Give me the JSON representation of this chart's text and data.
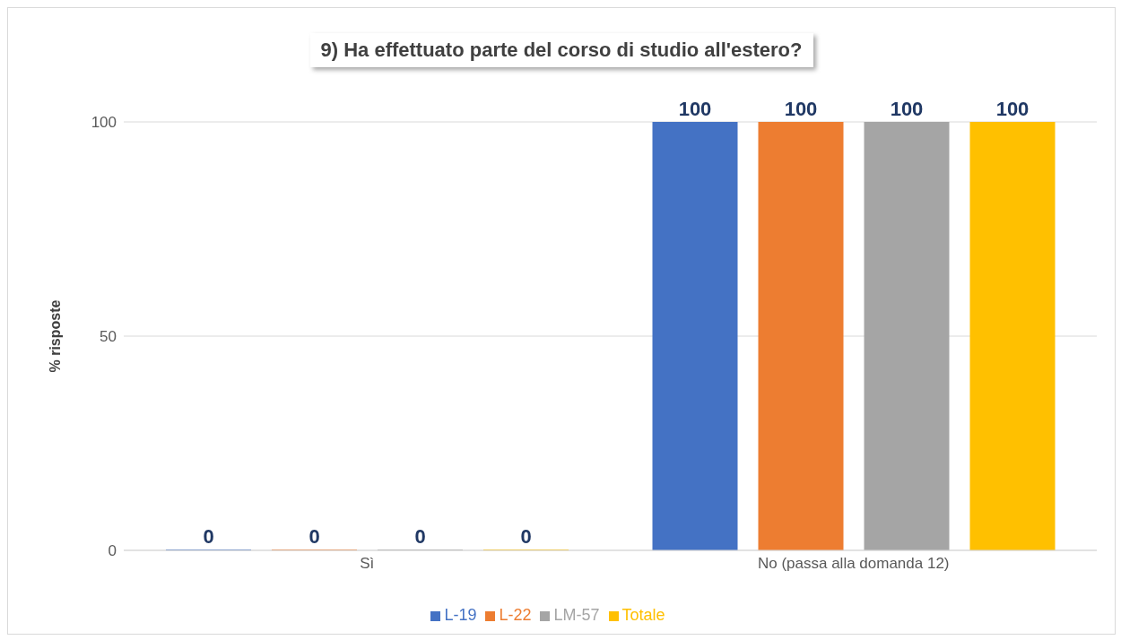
{
  "chart_data": {
    "type": "bar",
    "title": "9) Ha effettuato parte del corso di studio all'estero?",
    "ylabel": "% risposte",
    "categories": [
      "Sì",
      "No (passa alla domanda 12)"
    ],
    "series": [
      {
        "name": "L-19",
        "color": "#4472c4",
        "values": [
          0,
          100
        ]
      },
      {
        "name": "L-22",
        "color": "#ed7d31",
        "values": [
          0,
          100
        ]
      },
      {
        "name": "LM-57",
        "color": "#a5a5a5",
        "values": [
          0,
          100
        ]
      },
      {
        "name": "Totale",
        "color": "#ffc000",
        "values": [
          0,
          100
        ]
      }
    ],
    "ylim": [
      0,
      100
    ],
    "yticks": [
      0,
      50,
      100
    ],
    "grid": "y",
    "legend": "bottom",
    "data_labels": true
  }
}
